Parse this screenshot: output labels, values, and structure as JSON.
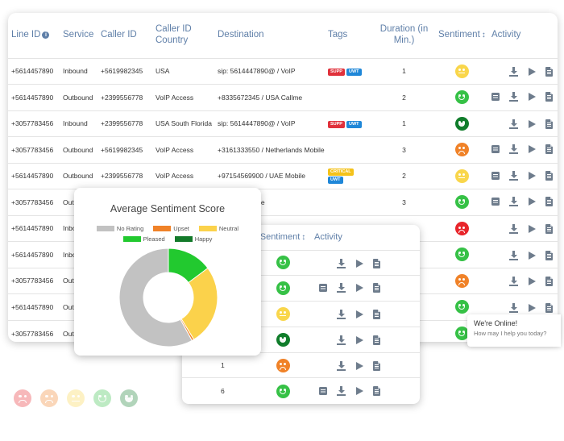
{
  "main_table": {
    "headers": {
      "line_id": "Line ID",
      "service": "Service",
      "caller_id": "Caller ID",
      "caller_country": "Caller ID Country",
      "destination": "Destination",
      "tags": "Tags",
      "duration": "Duration (in Min.)",
      "sentiment": "Sentiment",
      "activity": "Activity"
    },
    "rows": [
      {
        "line_id": "+5614457890",
        "service": "Inbound",
        "caller_id": "+5619982345",
        "country": "USA",
        "destination": "sip: 5614447890@ / VoIP",
        "tags": [
          "SUPP",
          "UWT"
        ],
        "duration": "1",
        "sentiment": "neutral",
        "activity": [
          "",
          "download",
          "play",
          "doc"
        ]
      },
      {
        "line_id": "+5614457890",
        "service": "Outbound",
        "caller_id": "+2399556778",
        "country": "VoIP Access",
        "destination": "+8335672345 / USA Callme",
        "tags": [],
        "duration": "2",
        "sentiment": "pleased",
        "activity": [
          "msg",
          "download",
          "play",
          "doc"
        ]
      },
      {
        "line_id": "+3057783456",
        "service": "Inbound",
        "caller_id": "+2399556778",
        "country": "USA South Florida",
        "destination": "sip: 5614447890@ / VoIP",
        "tags": [
          "SUPP",
          "UWT"
        ],
        "duration": "1",
        "sentiment": "happy",
        "activity": [
          "",
          "download",
          "play",
          "doc"
        ]
      },
      {
        "line_id": "+3057783456",
        "service": "Outbound",
        "caller_id": "+5619982345",
        "country": "VoIP Access",
        "destination": "+3161333550 / Netherlands Mobile",
        "tags": [],
        "duration": "3",
        "sentiment": "upset",
        "activity": [
          "msg",
          "download",
          "play",
          "doc"
        ]
      },
      {
        "line_id": "+5614457890",
        "service": "Outbound",
        "caller_id": "+2399556778",
        "country": "VoIP Access",
        "destination": "+97154569900 / UAE Mobile",
        "tags": [
          "CRITICAL",
          "UWT"
        ],
        "duration": "2",
        "sentiment": "neutral",
        "activity": [
          "msg",
          "download",
          "play",
          "doc"
        ]
      },
      {
        "line_id": "+3057783456",
        "service": "Outbound",
        "caller_id": "",
        "country": "",
        "destination": "/ France Mobile",
        "tags": [],
        "duration": "3",
        "sentiment": "pleased",
        "activity": [
          "msg",
          "download",
          "play",
          "doc"
        ]
      },
      {
        "line_id": "+5614457890",
        "service": "Inbound",
        "caller_id": "",
        "country": "",
        "destination": "",
        "tags": [],
        "duration": "",
        "sentiment": "angry",
        "activity": [
          "",
          "download",
          "play",
          "doc"
        ]
      },
      {
        "line_id": "+5614457890",
        "service": "Inbound",
        "caller_id": "",
        "country": "",
        "destination": "",
        "tags": [],
        "duration": "",
        "sentiment": "pleased",
        "activity": [
          "",
          "download",
          "play",
          "doc"
        ]
      },
      {
        "line_id": "+3057783456",
        "service": "Outbound",
        "caller_id": "",
        "country": "",
        "destination": "",
        "tags": [],
        "duration": "",
        "sentiment": "upset",
        "activity": [
          "",
          "download",
          "play",
          "doc"
        ]
      },
      {
        "line_id": "+5614457890",
        "service": "Outbound",
        "caller_id": "",
        "country": "",
        "destination": "",
        "tags": [],
        "duration": "",
        "sentiment": "pleased",
        "activity": [
          "",
          "download",
          "play",
          "doc"
        ]
      },
      {
        "line_id": "+3057783456",
        "service": "Outbound",
        "caller_id": "",
        "country": "",
        "destination": "",
        "tags": [],
        "duration": "",
        "sentiment": "pleased",
        "activity": [
          "",
          "download",
          "play",
          "doc"
        ]
      }
    ]
  },
  "second_table": {
    "headers": {
      "sentiment": "Sentiment",
      "activity": "Activity"
    },
    "rows": [
      {
        "value": "",
        "sentiment": "pleased",
        "activity": [
          "",
          "download",
          "play",
          "doc"
        ]
      },
      {
        "value": "",
        "sentiment": "pleased",
        "activity": [
          "msg",
          "download",
          "play",
          "doc"
        ]
      },
      {
        "value": "",
        "sentiment": "neutral",
        "activity": [
          "",
          "download",
          "play",
          "doc"
        ]
      },
      {
        "value": "",
        "sentiment": "happy",
        "activity": [
          "",
          "download",
          "play",
          "doc"
        ]
      },
      {
        "value": "1",
        "sentiment": "upset",
        "activity": [
          "",
          "download",
          "play",
          "doc"
        ]
      },
      {
        "value": "6",
        "sentiment": "pleased",
        "activity": [
          "msg",
          "download",
          "play",
          "doc"
        ]
      }
    ]
  },
  "chart_data": {
    "type": "pie",
    "title": "Average Sentiment Score",
    "legend_position": "top",
    "donut": true,
    "slices": [
      {
        "name": "No Rating",
        "value": 58,
        "color": "#c2c2c2"
      },
      {
        "name": "Upset",
        "value": 0.7,
        "color": "#f08228"
      },
      {
        "name": "Neutral",
        "value": 26.5,
        "color": "#fbd24b"
      },
      {
        "name": "Pleased",
        "value": 14.8,
        "color": "#22c92f"
      },
      {
        "name": "Happy",
        "value": 0,
        "color": "#137a2a"
      }
    ]
  },
  "chat": {
    "title": "We're Online!",
    "subtitle": "How may I help you today?"
  },
  "faded_scale": [
    "angry",
    "upset",
    "neutral",
    "pleased",
    "happy"
  ],
  "colors": {
    "header_text": "#5f7fa8",
    "happy": "#107d2b",
    "pleased": "#36c146",
    "neutral": "#f9d64b",
    "upset": "#f08228",
    "angry": "#e8252b"
  }
}
